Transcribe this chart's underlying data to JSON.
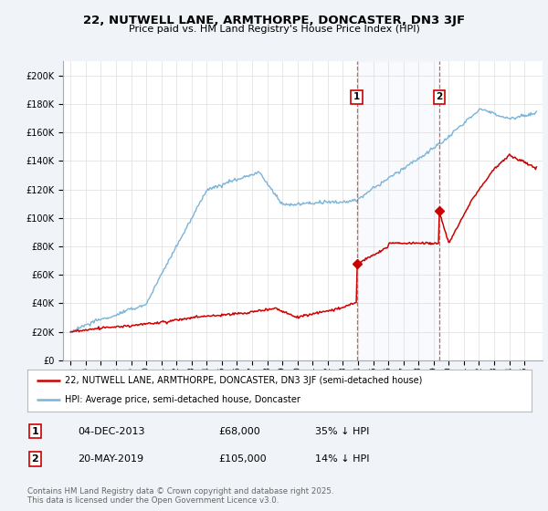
{
  "title": "22, NUTWELL LANE, ARMTHORPE, DONCASTER, DN3 3JF",
  "subtitle": "Price paid vs. HM Land Registry's House Price Index (HPI)",
  "background_color": "#f0f4f8",
  "plot_bg_color": "#ffffff",
  "ylim": [
    0,
    210000
  ],
  "yticks": [
    0,
    20000,
    40000,
    60000,
    80000,
    100000,
    120000,
    140000,
    160000,
    180000,
    200000
  ],
  "hpi_color": "#7ab4d8",
  "price_color": "#cc0000",
  "marker1_date_x": 2013.92,
  "marker2_date_x": 2019.38,
  "legend_text1": "22, NUTWELL LANE, ARMTHORPE, DONCASTER, DN3 3JF (semi-detached house)",
  "legend_text2": "HPI: Average price, semi-detached house, Doncaster",
  "table_row1": [
    "1",
    "04-DEC-2013",
    "£68,000",
    "35% ↓ HPI"
  ],
  "table_row2": [
    "2",
    "20-MAY-2019",
    "£105,000",
    "14% ↓ HPI"
  ],
  "footnote": "Contains HM Land Registry data © Crown copyright and database right 2025.\nThis data is licensed under the Open Government Licence v3.0.",
  "xlim_start": 1994.5,
  "xlim_end": 2026.2
}
